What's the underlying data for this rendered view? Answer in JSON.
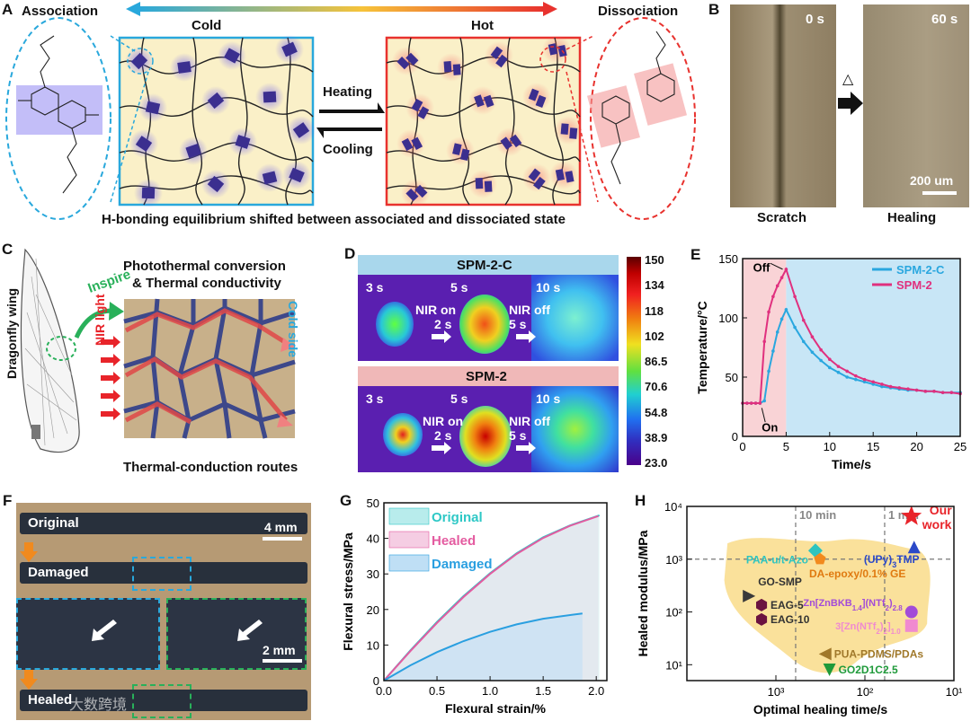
{
  "panels": {
    "A": {
      "letter": "A",
      "association": "Association",
      "dissociation": "Dissociation",
      "cold": "Cold",
      "hot": "Hot",
      "heating": "Heating",
      "cooling": "Cooling",
      "caption": "H-bonding equilibrium shifted between associated and dissociated state",
      "colors": {
        "cold": "#29a8dc",
        "hot": "#e8322e",
        "box_fill": "#faf0c8",
        "motif": "#3b2f8f"
      }
    },
    "B": {
      "letter": "B",
      "t0": "0 s",
      "t1": "60 s",
      "symbol": "△",
      "scale": "200 um",
      "scratch": "Scratch",
      "healing": "Healing"
    },
    "C": {
      "letter": "C",
      "wing": "Dragonfly wing",
      "inspire": "Inspire",
      "title_line1": "Photothermal conversion",
      "title_line2": "& Thermal conductivity",
      "nir": "NIR light",
      "cold_side": "Cold side",
      "routes": "Thermal-conduction routes"
    },
    "D": {
      "letter": "D",
      "title1": "SPM-2-C",
      "title2": "SPM-2",
      "t3": "3 s",
      "t5": "5 s",
      "t10": "10 s",
      "nir_on": "NIR on",
      "on_2s": "2 s",
      "nir_off": "NIR off",
      "off_5s": "5 s",
      "colorbar_ticks": [
        "150",
        "134",
        "118",
        "102",
        "86.5",
        "70.6",
        "54.8",
        "38.9",
        "23.0"
      ]
    },
    "E": {
      "letter": "E"
    },
    "F": {
      "letter": "F",
      "original": "Original",
      "damaged": "Damaged",
      "healed": "Healed",
      "scale1": "4 mm",
      "scale2": "2 mm",
      "watermark": "大数跨境"
    },
    "G": {
      "letter": "G"
    },
    "H": {
      "letter": "H"
    }
  },
  "chart_data": [
    {
      "id": "E",
      "type": "line",
      "xlabel": "Time/s",
      "ylabel": "Temperature/°C",
      "xlim": [
        0,
        25
      ],
      "ylim": [
        0,
        150
      ],
      "xticks": [
        0,
        5,
        10,
        15,
        20,
        25
      ],
      "yticks": [
        0,
        50,
        100,
        150
      ],
      "legend": [
        "SPM-2-C",
        "SPM-2"
      ],
      "annotations": {
        "on": "On",
        "off": "Off"
      },
      "series": [
        {
          "name": "SPM-2-C",
          "color": "#2aa7df",
          "x": [
            0,
            0.5,
            1,
            1.5,
            2,
            2.5,
            3,
            3.5,
            4,
            4.5,
            5,
            6,
            7,
            8,
            9,
            10,
            11,
            12,
            13,
            14,
            15,
            16,
            17,
            18,
            19,
            20,
            21,
            22,
            23,
            24,
            25
          ],
          "y": [
            28,
            28,
            28,
            28,
            28,
            30,
            55,
            72,
            88,
            99,
            107,
            92,
            80,
            71,
            64,
            58,
            54,
            50,
            48,
            46,
            44,
            42,
            41,
            40,
            39,
            39,
            38,
            38,
            37,
            37,
            37
          ]
        },
        {
          "name": "SPM-2",
          "color": "#e0307e",
          "x": [
            0,
            0.5,
            1,
            1.5,
            2,
            2.5,
            3,
            3.5,
            4,
            4.5,
            5,
            6,
            7,
            8,
            9,
            10,
            11,
            12,
            13,
            14,
            15,
            16,
            17,
            18,
            19,
            20,
            21,
            22,
            23,
            24,
            25
          ],
          "y": [
            28,
            28,
            28,
            28,
            28,
            80,
            105,
            118,
            127,
            134,
            141,
            118,
            98,
            84,
            73,
            65,
            59,
            55,
            51,
            48,
            46,
            44,
            42,
            41,
            40,
            39,
            38,
            38,
            37,
            37,
            36
          ]
        }
      ]
    },
    {
      "id": "G",
      "type": "area",
      "xlabel": "Flexural strain/%",
      "ylabel": "Flexural stress/MPa",
      "xlim": [
        0,
        2.1
      ],
      "ylim": [
        0,
        50
      ],
      "xticks": [
        0.0,
        0.5,
        1.0,
        1.5,
        2.0
      ],
      "yticks": [
        0,
        10,
        20,
        30,
        40,
        50
      ],
      "legend": [
        "Original",
        "Healed",
        "Damaged"
      ],
      "series": [
        {
          "name": "Original",
          "color": "#2ec8c6",
          "x": [
            0,
            0.25,
            0.5,
            0.75,
            1.0,
            1.25,
            1.5,
            1.75,
            2.03
          ],
          "y": [
            0,
            8.5,
            16.5,
            23.8,
            30.2,
            35.8,
            40.3,
            43.6,
            46.5
          ]
        },
        {
          "name": "Healed",
          "color": "#e45ba0",
          "x": [
            0,
            0.25,
            0.5,
            0.75,
            1.0,
            1.25,
            1.5,
            1.75,
            2.02
          ],
          "y": [
            0,
            8.3,
            16.2,
            23.5,
            30.0,
            35.6,
            40.1,
            43.5,
            46.3
          ]
        },
        {
          "name": "Damaged",
          "color": "#2a9fe0",
          "x": [
            0,
            0.25,
            0.5,
            0.75,
            1.0,
            1.25,
            1.5,
            1.87
          ],
          "y": [
            0,
            4.3,
            8.0,
            11.1,
            13.7,
            15.8,
            17.4,
            18.9
          ]
        }
      ]
    },
    {
      "id": "H",
      "type": "scatter",
      "xlabel": "Optimal healing time/s",
      "ylabel": "Healed modulus/MPa",
      "xscale": "log",
      "yscale": "log",
      "xlim": [
        10000,
        10
      ],
      "ylim": [
        5,
        10000
      ],
      "xticks": [
        "10³",
        "10²",
        "10¹"
      ],
      "yticks": [
        "10⁴",
        "10³",
        "10²",
        "10¹"
      ],
      "xtick_values": [
        1000,
        100,
        10
      ],
      "ytick_values": [
        10000,
        1000,
        100,
        10
      ],
      "reference_lines": [
        {
          "label": "10 min",
          "x": 600
        },
        {
          "label": "1 min",
          "x": 60
        },
        {
          "y": 1000
        }
      ],
      "points": [
        {
          "label": "Our work",
          "line1": "Our",
          "line2": "work",
          "x": 30,
          "y": 6500,
          "shape": "star",
          "color": "#e8242a"
        },
        {
          "label": "(UPy)3TMP",
          "x": 28,
          "y": 1700,
          "shape": "triangle-up",
          "color": "#2b49c8"
        },
        {
          "label": "PAA-u/t-Azo",
          "x": 360,
          "y": 1450,
          "shape": "diamond",
          "color": "#2ec4c0"
        },
        {
          "label": "DA-epoxy/0.1% GE",
          "x": 320,
          "y": 1000,
          "shape": "pentagon",
          "color": "#f28a1e"
        },
        {
          "label": "GO-SMP",
          "x": 2000,
          "y": 200,
          "shape": "triangle-right",
          "color": "#3a3a3a"
        },
        {
          "label": "EAG-5",
          "x": 1450,
          "y": 135,
          "shape": "hexagon",
          "color": "#6b1240"
        },
        {
          "label": "EAG-10",
          "x": 1450,
          "y": 72,
          "shape": "hexagon",
          "color": "#6b1240"
        },
        {
          "label": "Zn[ZnBKB1.4](NTf2)2.8",
          "x": 30,
          "y": 100,
          "shape": "circle",
          "color": "#a24bd8"
        },
        {
          "label": "3[Zn(NTf2)2]1.0",
          "x": 30,
          "y": 55,
          "shape": "square",
          "color": "#f08ad0"
        },
        {
          "label": "PUA-PDMS/PDAs",
          "x": 280,
          "y": 16,
          "shape": "triangle-left",
          "color": "#a0782a"
        },
        {
          "label": "GO2D1C2.5",
          "x": 250,
          "y": 8,
          "shape": "triangle-down",
          "color": "#1f9a3a"
        }
      ]
    }
  ]
}
